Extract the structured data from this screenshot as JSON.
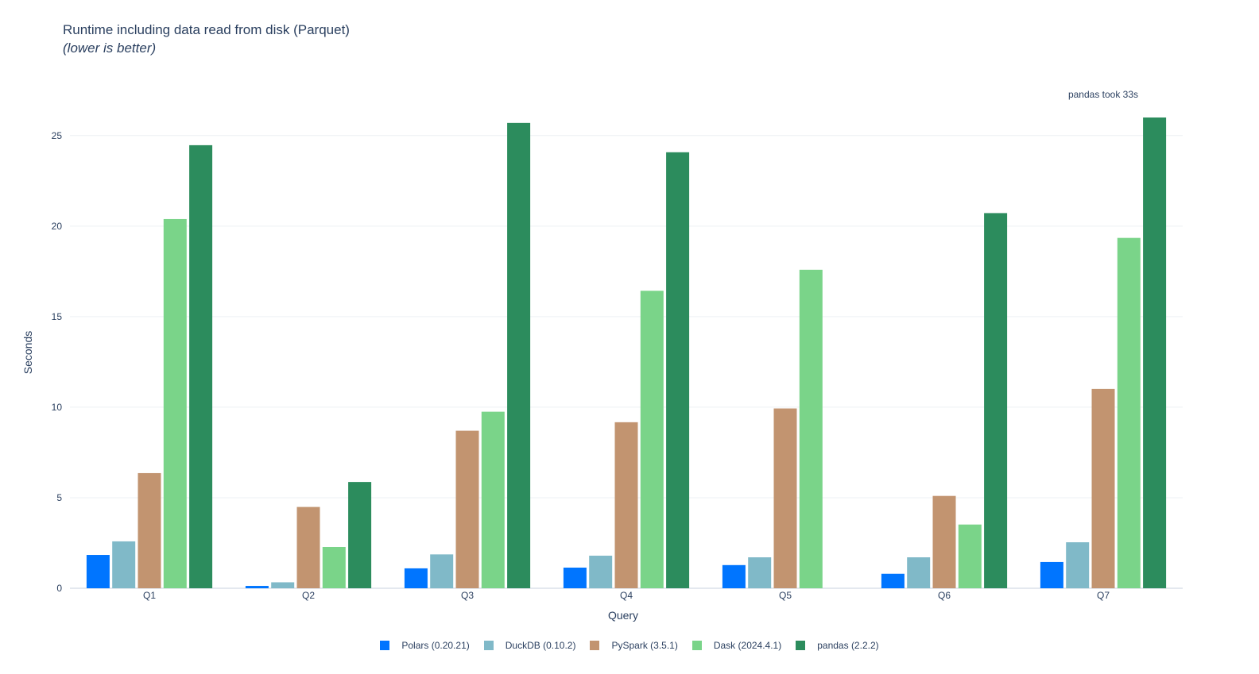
{
  "chart_data": {
    "type": "bar",
    "title": "Runtime including data read from disk (Parquet)",
    "subtitle": "(lower is better)",
    "xlabel": "Query",
    "ylabel": "Seconds",
    "ylim": [
      0,
      26
    ],
    "yticks": [
      0,
      5,
      10,
      15,
      20,
      25
    ],
    "grid": true,
    "legend_position": "bottom-center",
    "categories": [
      "Q1",
      "Q2",
      "Q3",
      "Q4",
      "Q5",
      "Q6",
      "Q7"
    ],
    "series": [
      {
        "name": "Polars (0.20.21)",
        "color": "#0075ff",
        "values": [
          1.84,
          0.13,
          1.1,
          1.14,
          1.28,
          0.8,
          1.45
        ]
      },
      {
        "name": "DuckDB (0.10.2)",
        "color": "#80b9c8",
        "values": [
          2.59,
          0.33,
          1.87,
          1.8,
          1.71,
          1.71,
          2.54
        ]
      },
      {
        "name": "PySpark (3.5.1)",
        "color": "#c29470",
        "values": [
          6.36,
          4.49,
          8.7,
          9.17,
          9.93,
          5.1,
          11.01
        ]
      },
      {
        "name": "Dask (2024.4.1)",
        "color": "#7ad489",
        "values": [
          20.39,
          2.28,
          9.75,
          16.43,
          17.59,
          3.52,
          19.35
        ]
      },
      {
        "name": "pandas (2.2.2)",
        "color": "#2c8c5d",
        "values": [
          24.47,
          5.87,
          25.7,
          24.08,
          null,
          20.72,
          33.0
        ]
      }
    ],
    "annotations": [
      {
        "text": "pandas took 33s",
        "x": "Q7"
      }
    ]
  }
}
